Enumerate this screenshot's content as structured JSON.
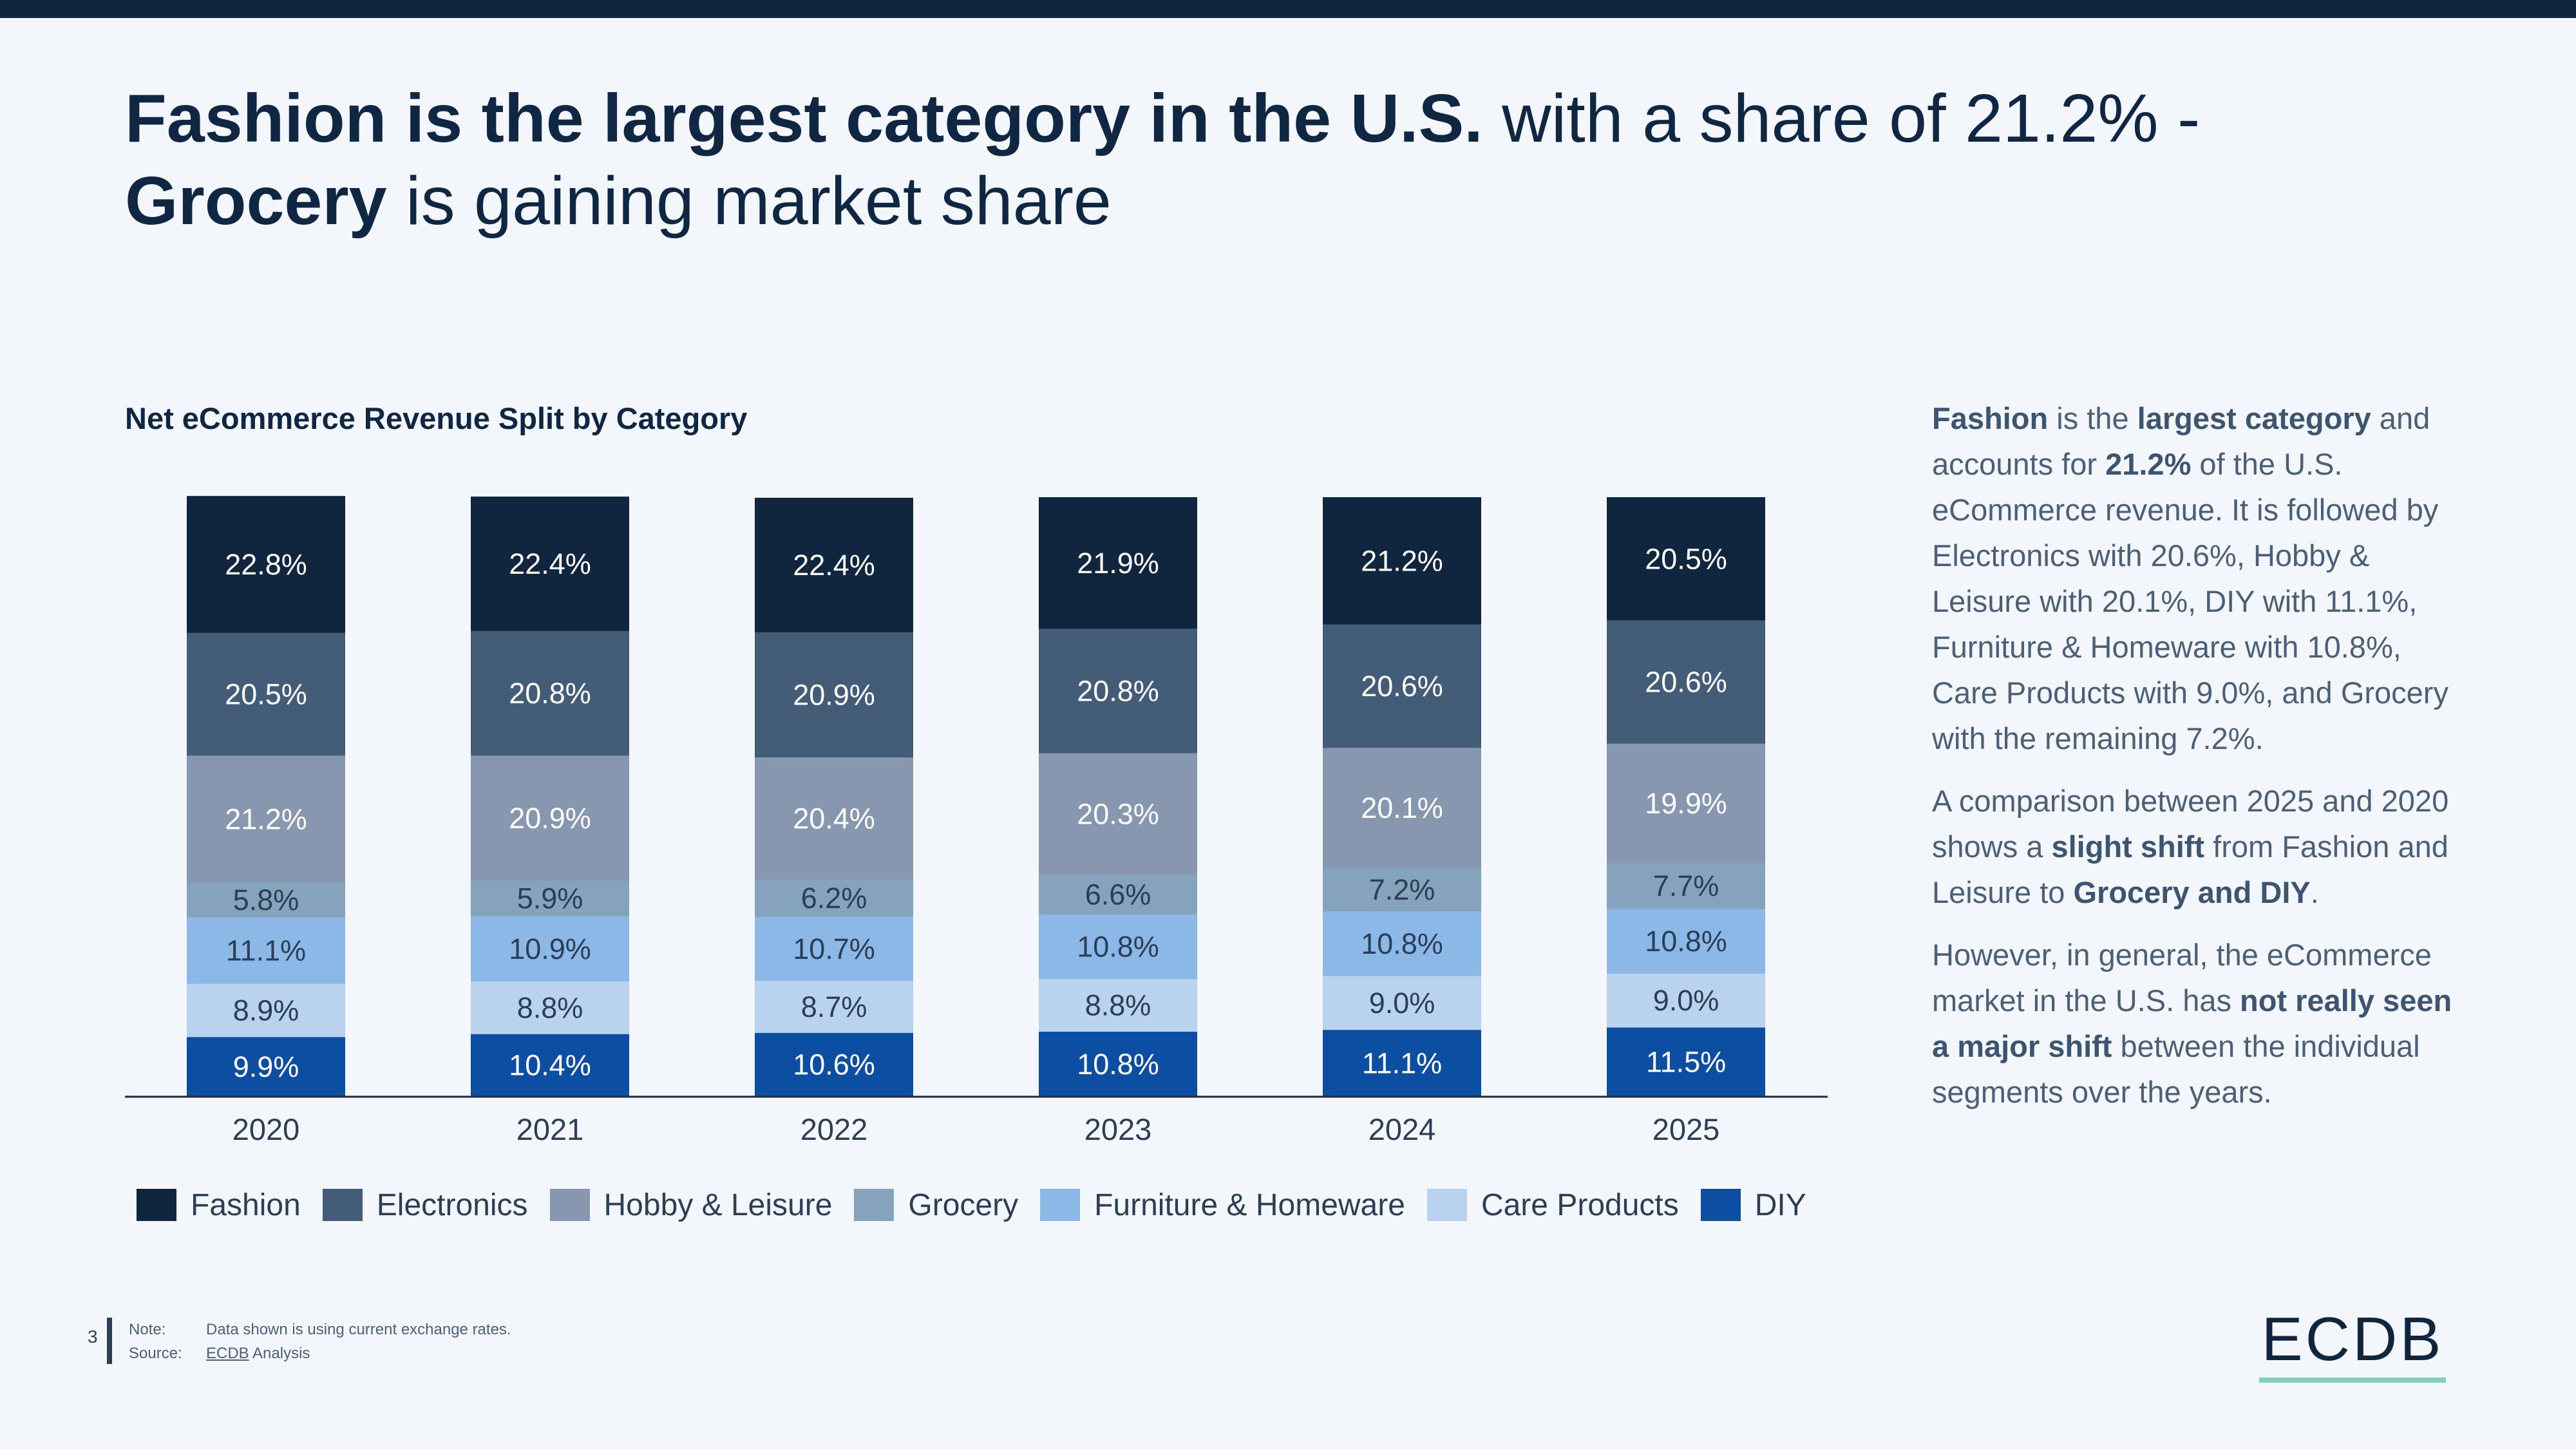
{
  "headline": {
    "bold1": "Fashion is the largest category in the U.S.",
    "normal1": " with a share of 21.2% - ",
    "bold2": "Grocery",
    "normal2": " is gaining market share"
  },
  "chart_data": {
    "type": "bar",
    "stacked": true,
    "title": "Net eCommerce Revenue Split by Category",
    "xlabel": "",
    "ylabel": "",
    "ylim": [
      0,
      100
    ],
    "grid": false,
    "legend_position": "bottom",
    "categories": [
      "2020",
      "2021",
      "2022",
      "2023",
      "2024",
      "2025"
    ],
    "series": [
      {
        "name": "DIY",
        "color": "#0b4ea2",
        "values": [
          9.9,
          10.4,
          10.6,
          10.8,
          11.1,
          11.5
        ],
        "labels": [
          "9.9%",
          "10.4%",
          "10.6%",
          "10.8%",
          "11.1%",
          "11.5%"
        ]
      },
      {
        "name": "Care Products",
        "color": "#b9d3ef",
        "values": [
          8.9,
          8.8,
          8.7,
          8.8,
          9.0,
          9.0
        ],
        "labels": [
          "8.9%",
          "8.8%",
          "8.7%",
          "8.8%",
          "9.0%",
          "9.0%"
        ]
      },
      {
        "name": "Furniture & Homeware",
        "color": "#8cb8e8",
        "values": [
          11.1,
          10.9,
          10.7,
          10.8,
          10.8,
          10.8
        ],
        "labels": [
          "11.1%",
          "10.9%",
          "10.7%",
          "10.8%",
          "10.8%",
          "10.8%"
        ]
      },
      {
        "name": "Grocery",
        "color": "#86a3bd",
        "values": [
          5.8,
          5.9,
          6.2,
          6.6,
          7.2,
          7.7
        ],
        "labels": [
          "5.8%",
          "5.9%",
          "6.2%",
          "6.6%",
          "7.2%",
          "7.7%"
        ]
      },
      {
        "name": "Hobby & Leisure",
        "color": "#8797b0",
        "values": [
          21.2,
          20.9,
          20.4,
          20.3,
          20.1,
          19.9
        ],
        "labels": [
          "21.2%",
          "20.9%",
          "20.4%",
          "20.3%",
          "20.1%",
          "19.9%"
        ]
      },
      {
        "name": "Electronics",
        "color": "#435c78",
        "values": [
          20.5,
          20.8,
          20.9,
          20.8,
          20.6,
          20.6
        ],
        "labels": [
          "20.5%",
          "20.8%",
          "20.9%",
          "20.8%",
          "20.6%",
          "20.6%"
        ]
      },
      {
        "name": "Fashion",
        "color": "#10263f",
        "values": [
          22.8,
          22.4,
          22.4,
          21.9,
          21.2,
          20.5
        ],
        "labels": [
          "22.8%",
          "22.4%",
          "22.4%",
          "21.9%",
          "21.2%",
          "20.5%"
        ]
      }
    ],
    "legend_order": [
      "Fashion",
      "Electronics",
      "Hobby & Leisure",
      "Grocery",
      "Furniture & Homeware",
      "Care Products",
      "DIY"
    ]
  },
  "side_text": {
    "p1": [
      {
        "t": "Fashion",
        "b": true
      },
      {
        "t": " is the ",
        "b": false
      },
      {
        "t": "largest category",
        "b": true
      },
      {
        "t": " and accounts for ",
        "b": false
      },
      {
        "t": "21.2%",
        "b": true
      },
      {
        "t": " of the U.S. eCommerce revenue. It is followed by Electronics with 20.6%, Hobby & Leisure with 20.1%, DIY with 11.1%, Furniture & Homeware with 10.8%, Care Products with 9.0%, and Grocery with the remaining 7.2%.",
        "b": false
      }
    ],
    "p2": [
      {
        "t": "A comparison between 2025 and 2020 shows a ",
        "b": false
      },
      {
        "t": "slight shift",
        "b": true
      },
      {
        "t": " from Fashion and Leisure to ",
        "b": false
      },
      {
        "t": "Grocery and DIY",
        "b": true
      },
      {
        "t": ".",
        "b": false
      }
    ],
    "p3": [
      {
        "t": "However, in general, the eCommerce market in the U.S. has ",
        "b": false
      },
      {
        "t": "not really seen a major shift",
        "b": true
      },
      {
        "t": " between the individual segments over the years.",
        "b": false
      }
    ]
  },
  "footer": {
    "page_number": "3",
    "note_label": "Note:",
    "note_text": "Data shown is using current exchange rates.",
    "source_label": "Source:",
    "source_link": "ECDB",
    "source_rest": " Analysis",
    "logo": "ECDB"
  }
}
